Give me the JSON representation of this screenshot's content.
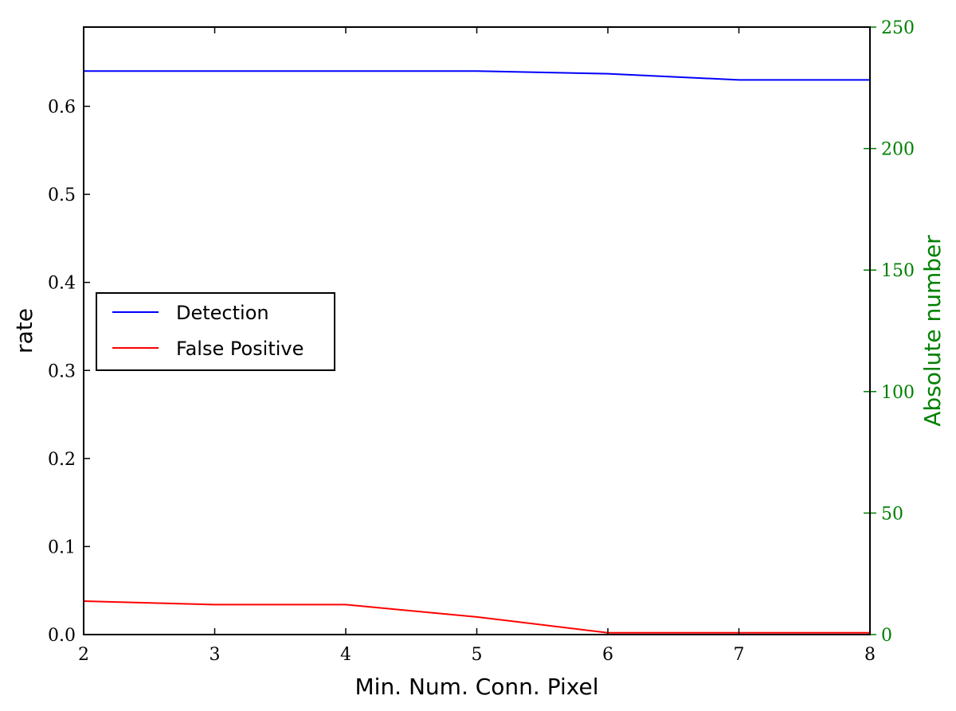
{
  "chart_data": {
    "type": "line",
    "title": "",
    "xlabel": "Min. Num. Conn. Pixel",
    "ylabel": "rate",
    "y2label": "Absolute number",
    "x": [
      2,
      3,
      4,
      5,
      6,
      7,
      8
    ],
    "xlim": [
      2,
      8
    ],
    "ylim": [
      0,
      0.69
    ],
    "y2lim": [
      0,
      250
    ],
    "xticks": [
      "2",
      "3",
      "4",
      "5",
      "6",
      "7",
      "8"
    ],
    "yticks": [
      "0.0",
      "0.1",
      "0.2",
      "0.3",
      "0.4",
      "0.5",
      "0.6"
    ],
    "y2ticks": [
      "0",
      "50",
      "100",
      "150",
      "200",
      "250"
    ],
    "grid": false,
    "legend_position": "center-left",
    "series": [
      {
        "name": "Detection",
        "axis": "left",
        "color": "#0000ff",
        "values": [
          0.64,
          0.64,
          0.64,
          0.64,
          0.637,
          0.63,
          0.63
        ]
      },
      {
        "name": "False Positive",
        "axis": "left",
        "color": "#ff0000",
        "values": [
          0.038,
          0.034,
          0.034,
          0.02,
          0.002,
          0.002,
          0.002
        ]
      }
    ],
    "colors": {
      "axis": "#000000",
      "right_axis": "#008000"
    }
  }
}
